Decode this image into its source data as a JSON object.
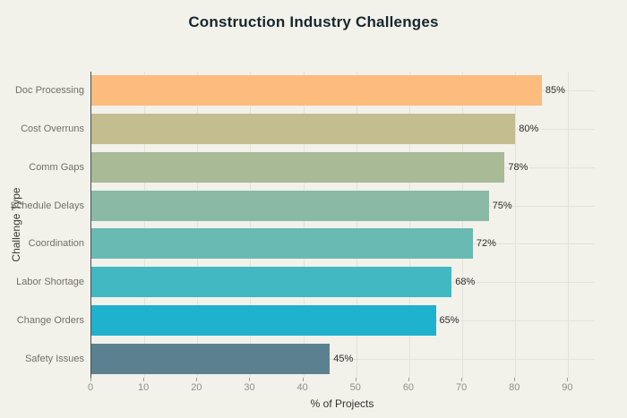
{
  "page": {
    "background": "#F2F1EA"
  },
  "chart_data": {
    "type": "bar",
    "orientation": "horizontal",
    "title": "Construction Industry Challenges",
    "xlabel": "% of Projects",
    "ylabel": "Challenge Type",
    "categories": [
      "Doc Processing",
      "Cost Overruns",
      "Comm Gaps",
      "Schedule Delays",
      "Coordination",
      "Labor Shortage",
      "Change Orders",
      "Safety Issues"
    ],
    "values": [
      85,
      80,
      78,
      75,
      72,
      68,
      65,
      45
    ],
    "value_labels": [
      "85%",
      "80%",
      "78%",
      "75%",
      "72%",
      "68%",
      "65%",
      "45%"
    ],
    "bar_colors": [
      "#FDBC7D",
      "#C4BD90",
      "#A8BA96",
      "#8ABAA6",
      "#69BAB3",
      "#41B8C2",
      "#1FB2CE",
      "#5B8190"
    ],
    "xlim": [
      0,
      95
    ],
    "xticks": [
      0,
      10,
      20,
      30,
      40,
      50,
      60,
      70,
      80,
      90
    ],
    "grid": true,
    "legend": null,
    "theme": {
      "background": "#F2F1EA",
      "grid_color": "#E3E3DA",
      "spine_color": "#3F4E55",
      "title_color": "#16262E",
      "category_label_color": "#70706A",
      "tick_label_color": "#8F8F88",
      "value_label_color": "#2E2E2A",
      "axis_title_color": "#33332E"
    }
  }
}
